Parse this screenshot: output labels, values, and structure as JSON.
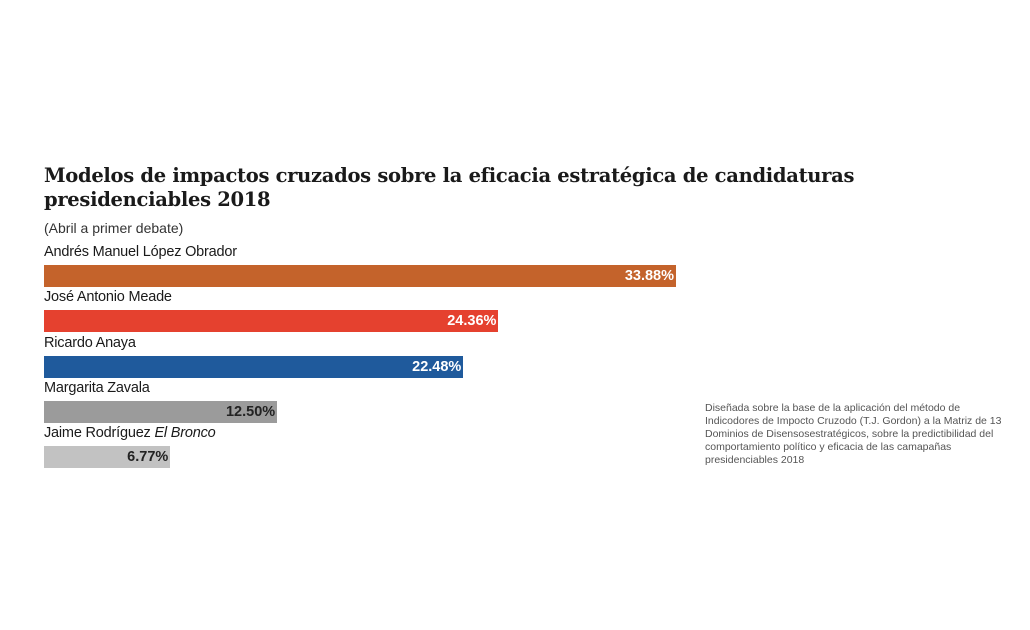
{
  "chart_data": {
    "type": "bar",
    "orientation": "horizontal",
    "title": "Modelos de impactos cruzados sobre la eficacia estratégica de candidaturas presidenciables 2018",
    "subtitle": "(Abril a primer debate)",
    "categories": [
      "Andrés Manuel López Obrador",
      "José Antonio Meade",
      "Ricardo Anaya",
      "Margarita Zavala",
      "Jaime Rodríguez"
    ],
    "category_suffix": [
      "",
      "",
      "",
      "",
      "El Bronco"
    ],
    "values": [
      33.88,
      24.36,
      22.48,
      12.5,
      6.77
    ],
    "value_labels": [
      "33.88%",
      "24.36%",
      "22.48%",
      "12.50%",
      "6.77%"
    ],
    "colors": [
      "#c4632b",
      "#e5412f",
      "#1f5a9c",
      "#9b9b9b",
      "#c2c2c2"
    ],
    "label_colors": [
      "#ffffff",
      "#ffffff",
      "#ffffff",
      "#222222",
      "#222222"
    ],
    "xlim": [
      0,
      33.88
    ],
    "grid": false,
    "note": "Diseñada sobre la base de la aplicación del método de Indicodores de Impocto Cruzodo (T.J. Gordon) a la Matriz de 13 Dominios de Disensosestratégicos, sobre la predictibilidad del comportamiento político y eficacia de las camapañas presidenciables 2018"
  }
}
